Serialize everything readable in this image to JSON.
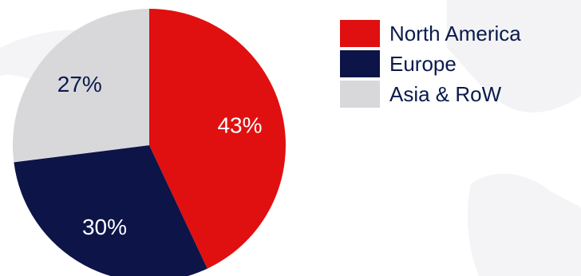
{
  "chart_data": {
    "type": "pie",
    "title": "",
    "slices": [
      {
        "label": "North America",
        "value": 43,
        "display": "43%",
        "color": "#e01010",
        "text_color": "#ffffff"
      },
      {
        "label": "Europe",
        "value": 30,
        "display": "30%",
        "color": "#0c1448",
        "text_color": "#ffffff"
      },
      {
        "label": "Asia & RoW",
        "value": 27,
        "display": "27%",
        "color": "#d8d8da",
        "text_color": "#0b1a4d"
      }
    ],
    "start_angle_deg": 0,
    "direction": "clockwise",
    "legend_placement": "right"
  },
  "legend": {
    "items": [
      {
        "label": "North America"
      },
      {
        "label": "Europe"
      },
      {
        "label": "Asia & RoW"
      }
    ]
  }
}
